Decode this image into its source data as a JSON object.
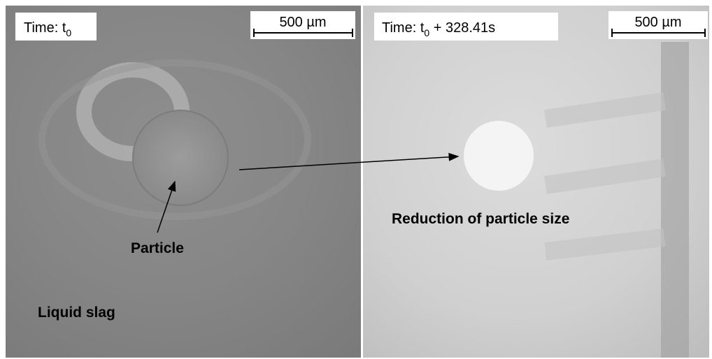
{
  "panels": [
    {
      "time_label": {
        "text": "Time: t",
        "subscript": "0"
      },
      "scale_bar": "500 µm"
    },
    {
      "time_label": {
        "text": "Time: t",
        "subscript": "0",
        "suffix": " + 328.41s"
      },
      "scale_bar": "500 µm"
    }
  ],
  "annotations": {
    "particle": "Particle",
    "liquid_slag": "Liquid slag",
    "reduction": "Reduction of particle size"
  }
}
